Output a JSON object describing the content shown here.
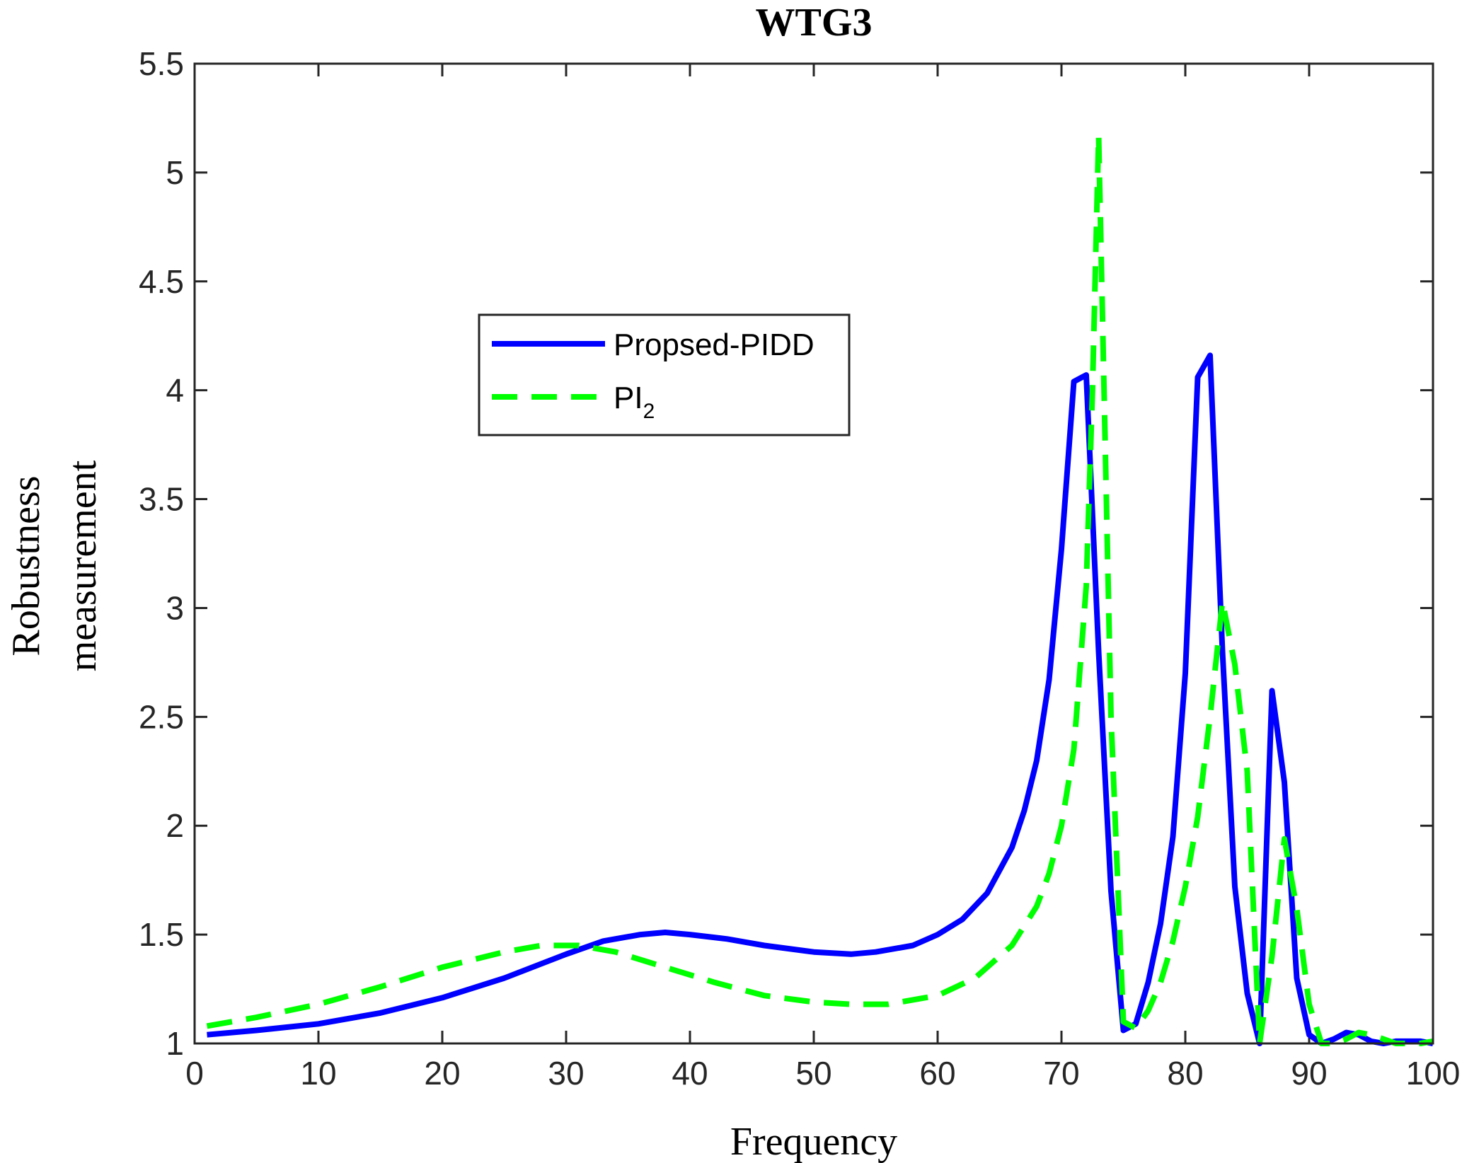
{
  "chart_data": {
    "type": "line",
    "title": "WTG3",
    "xlabel": "Frequency",
    "ylabel": [
      "Robustness",
      "measurement"
    ],
    "xlim": [
      0,
      100
    ],
    "ylim": [
      1,
      5.5
    ],
    "xticks": [
      0,
      10,
      20,
      30,
      40,
      50,
      60,
      70,
      80,
      90,
      100
    ],
    "yticks": [
      1,
      1.5,
      2,
      2.5,
      3,
      3.5,
      4,
      4.5,
      5,
      5.5
    ],
    "xtick_labels": [
      "0",
      "10",
      "20",
      "30",
      "40",
      "50",
      "60",
      "70",
      "80",
      "90",
      "100"
    ],
    "ytick_labels": [
      "1",
      "1.5",
      "2",
      "2.5",
      "3",
      "3.5",
      "4",
      "4.5",
      "5",
      "5.5"
    ],
    "grid": false,
    "legend_position": "upper-left-center",
    "series": [
      {
        "name": "Propsed-PIDD",
        "color": "#0000ff",
        "style": "solid",
        "x": [
          1,
          5,
          10,
          15,
          20,
          25,
          30,
          33,
          36,
          38,
          40,
          43,
          46,
          50,
          53,
          55,
          58,
          60,
          62,
          64,
          66,
          67,
          68,
          69,
          70,
          71,
          72,
          73,
          74,
          75,
          76,
          77,
          78,
          79,
          80,
          81,
          82,
          83,
          84,
          85,
          86,
          87,
          88,
          89,
          90,
          91,
          92,
          93,
          94,
          95,
          96,
          97,
          98,
          99,
          100
        ],
        "y": [
          1.04,
          1.06,
          1.09,
          1.14,
          1.21,
          1.3,
          1.41,
          1.47,
          1.5,
          1.51,
          1.5,
          1.48,
          1.45,
          1.42,
          1.41,
          1.42,
          1.45,
          1.5,
          1.57,
          1.69,
          1.9,
          2.07,
          2.3,
          2.67,
          3.27,
          4.04,
          4.07,
          2.8,
          1.7,
          1.06,
          1.09,
          1.28,
          1.55,
          1.95,
          2.7,
          4.06,
          4.16,
          2.8,
          1.72,
          1.23,
          1.0,
          2.62,
          2.2,
          1.3,
          1.04,
          1.0,
          1.02,
          1.05,
          1.04,
          1.01,
          1.0,
          1.01,
          1.01,
          1.01,
          1.0
        ]
      },
      {
        "name": "PI",
        "name_subscript": "2",
        "color": "#00ff00",
        "style": "dashed",
        "x": [
          1,
          5,
          10,
          15,
          20,
          25,
          28,
          31,
          34,
          38,
          42,
          46,
          50,
          53,
          56,
          60,
          63,
          66,
          68,
          69,
          70,
          71,
          72,
          72.5,
          73,
          74,
          75,
          76,
          77,
          78,
          79,
          80,
          81,
          82,
          83,
          84,
          85,
          86,
          87,
          88,
          89,
          90,
          91,
          92,
          93,
          94,
          95,
          96,
          97,
          98,
          99,
          100
        ],
        "y": [
          1.08,
          1.12,
          1.18,
          1.26,
          1.35,
          1.42,
          1.45,
          1.45,
          1.42,
          1.35,
          1.28,
          1.22,
          1.19,
          1.18,
          1.18,
          1.22,
          1.3,
          1.45,
          1.63,
          1.78,
          2.0,
          2.35,
          3.1,
          4.0,
          5.17,
          2.5,
          1.1,
          1.07,
          1.15,
          1.28,
          1.47,
          1.72,
          2.04,
          2.5,
          3.03,
          2.74,
          2.25,
          1.0,
          1.4,
          1.94,
          1.62,
          1.18,
          1.0,
          1.0,
          1.02,
          1.05,
          1.04,
          1.02,
          1.0,
          1.0,
          1.0,
          1.01
        ]
      }
    ]
  }
}
